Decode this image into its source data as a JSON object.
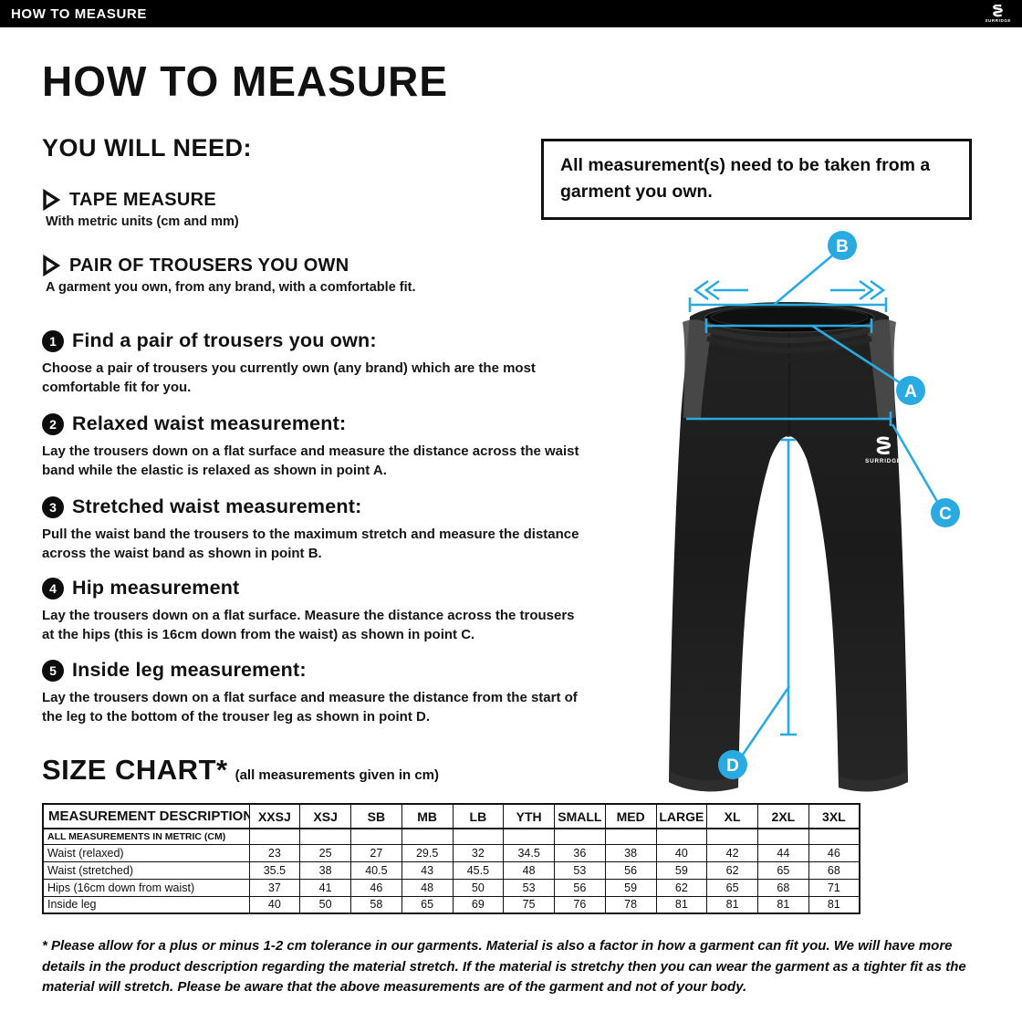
{
  "colors": {
    "accent": "#29ABE2",
    "bar": "#000000",
    "text": "#111111"
  },
  "top_bar": {
    "title": "HOW TO MEASURE",
    "brand": "SURRIDGE"
  },
  "page": {
    "title": "HOW TO MEASURE",
    "you_will_need": {
      "heading": "YOU WILL NEED:",
      "items": [
        {
          "title": "TAPE MEASURE",
          "desc": "With metric units (cm and mm)"
        },
        {
          "title": "PAIR OF TROUSERS YOU OWN",
          "desc": "A garment you own, from any brand, with a comfortable fit."
        }
      ]
    },
    "note": "All measurement(s) need to be taken from a garment you own.",
    "steps": [
      {
        "num": "1",
        "title": "Find a pair of trousers you own:",
        "body": "Choose a pair of trousers you currently own (any brand) which are the most comfortable fit for you."
      },
      {
        "num": "2",
        "title": "Relaxed waist measurement:",
        "body": "Lay the trousers down on a flat surface and measure the distance across the waist band while the elastic is relaxed as shown in point A."
      },
      {
        "num": "3",
        "title": "Stretched waist measurement:",
        "body": "Pull the waist band the trousers to the maximum stretch and measure the distance across the waist band as shown in point B."
      },
      {
        "num": "4",
        "title": "Hip measurement",
        "body": "Lay the trousers down on a flat surface. Measure the distance across the trousers at the hips (this is 16cm down from the waist) as shown in point C."
      },
      {
        "num": "5",
        "title": "Inside leg measurement:",
        "body": "Lay the trousers down on a flat surface and measure the distance from the start of the leg to the bottom of the trouser leg as shown in point D."
      }
    ],
    "diagram": {
      "garment_logo": "SURRIDGE",
      "points": [
        {
          "label": "A",
          "meaning": "relaxed waist"
        },
        {
          "label": "B",
          "meaning": "stretched waist"
        },
        {
          "label": "C",
          "meaning": "hips"
        },
        {
          "label": "D",
          "meaning": "inside leg"
        }
      ]
    },
    "size_chart": {
      "heading": "SIZE CHART*",
      "subheading": "(all measurements given in cm)",
      "columns": [
        "MEASUREMENT DESCRIPTION",
        "XXSJ",
        "XSJ",
        "SB",
        "MB",
        "LB",
        "YTH",
        "SMALL",
        "MED",
        "LARGE",
        "XL",
        "2XL",
        "3XL"
      ],
      "unit_row_label": "ALL MEASUREMENTS IN METRIC (CM)",
      "rows": [
        {
          "label": "Waist (relaxed)",
          "values": [
            "23",
            "25",
            "27",
            "29.5",
            "32",
            "34.5",
            "36",
            "38",
            "40",
            "42",
            "44",
            "46"
          ]
        },
        {
          "label": "Waist (stretched)",
          "values": [
            "35.5",
            "38",
            "40.5",
            "43",
            "45.5",
            "48",
            "53",
            "56",
            "59",
            "62",
            "65",
            "68"
          ]
        },
        {
          "label": "Hips (16cm down from waist)",
          "values": [
            "37",
            "41",
            "46",
            "48",
            "50",
            "53",
            "56",
            "59",
            "62",
            "65",
            "68",
            "71"
          ]
        },
        {
          "label": "Inside leg",
          "values": [
            "40",
            "50",
            "58",
            "65",
            "69",
            "75",
            "76",
            "78",
            "81",
            "81",
            "81",
            "81"
          ]
        }
      ]
    },
    "footnote": "* Please allow for a plus or minus 1-2 cm tolerance in our garments. Material is also a factor in how a garment can fit you. We will have more details in the product description regarding the material stretch.  If the material is stretchy then you can wear the garment as a tighter fit as the material will stretch.  Please be aware that the above measurements are of the garment and not of your body."
  }
}
